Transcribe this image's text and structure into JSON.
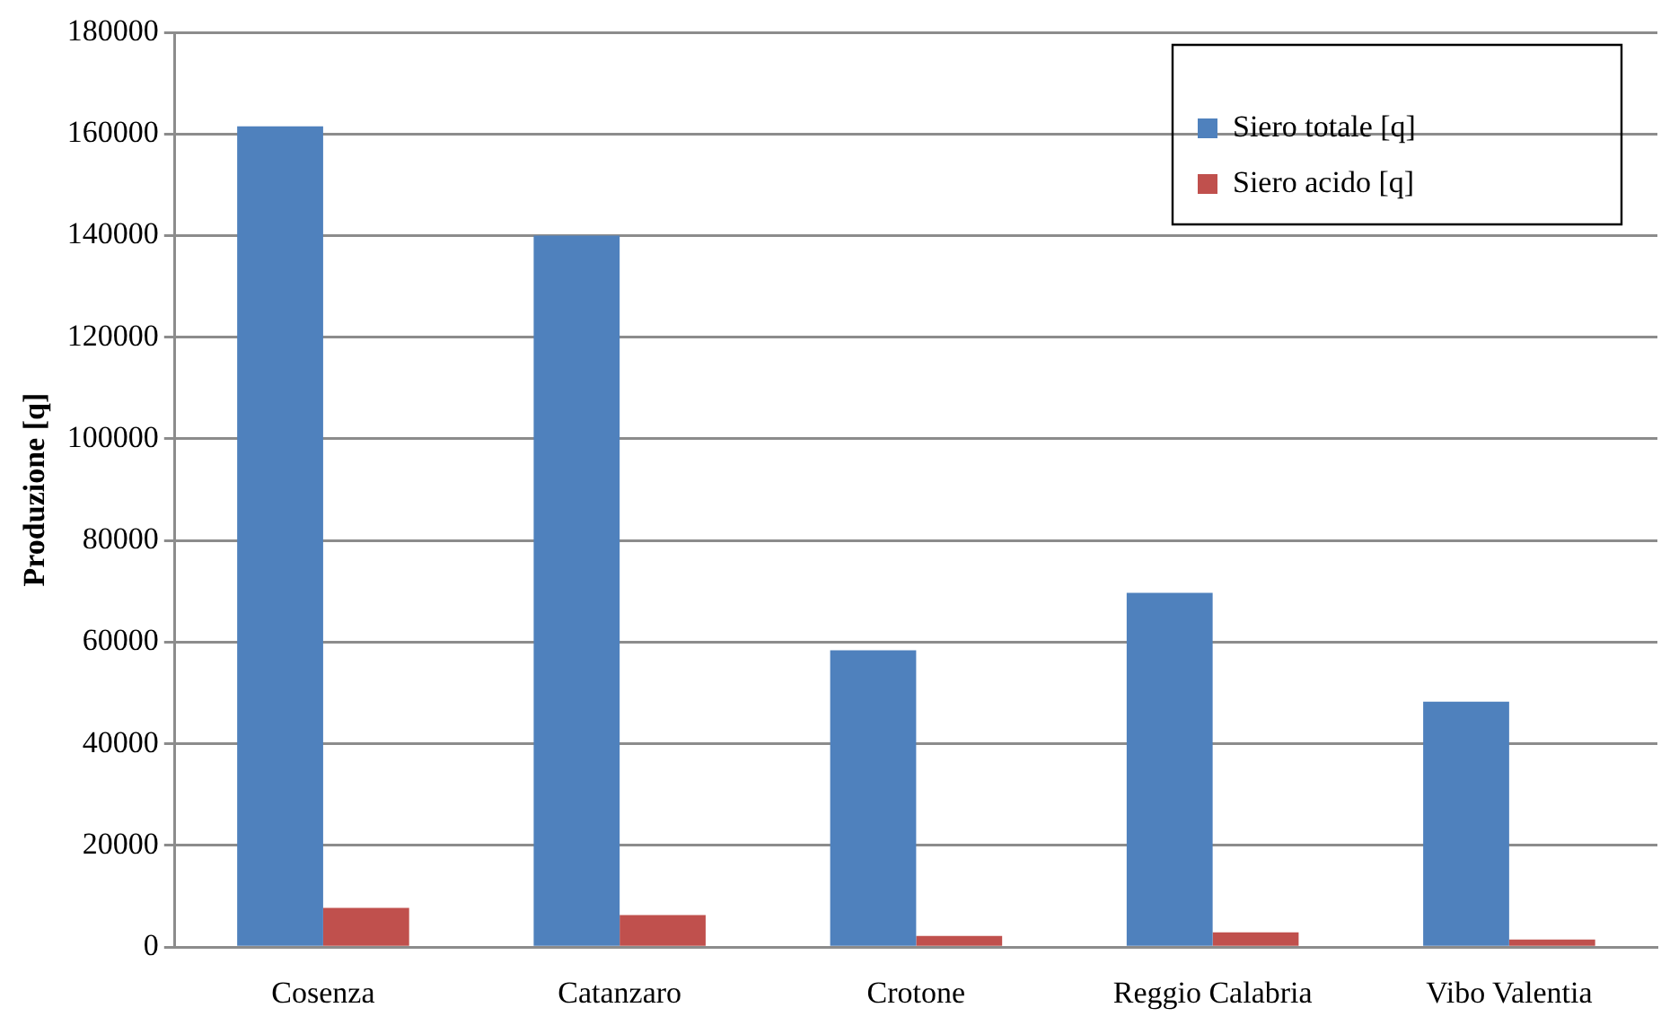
{
  "chart_data": {
    "type": "bar",
    "ylabel": "Produzione [q]",
    "categories": [
      "Cosenza",
      "Catanzaro",
      "Crotone",
      "Reggio Calabria",
      "Vibo Valentia"
    ],
    "series": [
      {
        "name": "Siero totale [q]",
        "color": "#4f81bd",
        "values": [
          161500,
          140000,
          58400,
          69700,
          48300
        ]
      },
      {
        "name": "Siero acido [q]",
        "color": "#c0504d",
        "values": [
          7700,
          6300,
          2200,
          2900,
          1500
        ]
      }
    ],
    "ylim": [
      0,
      180000
    ],
    "yticks": [
      0,
      20000,
      40000,
      60000,
      80000,
      100000,
      120000,
      140000,
      160000,
      180000
    ],
    "grid": "y",
    "legend": "top right"
  }
}
